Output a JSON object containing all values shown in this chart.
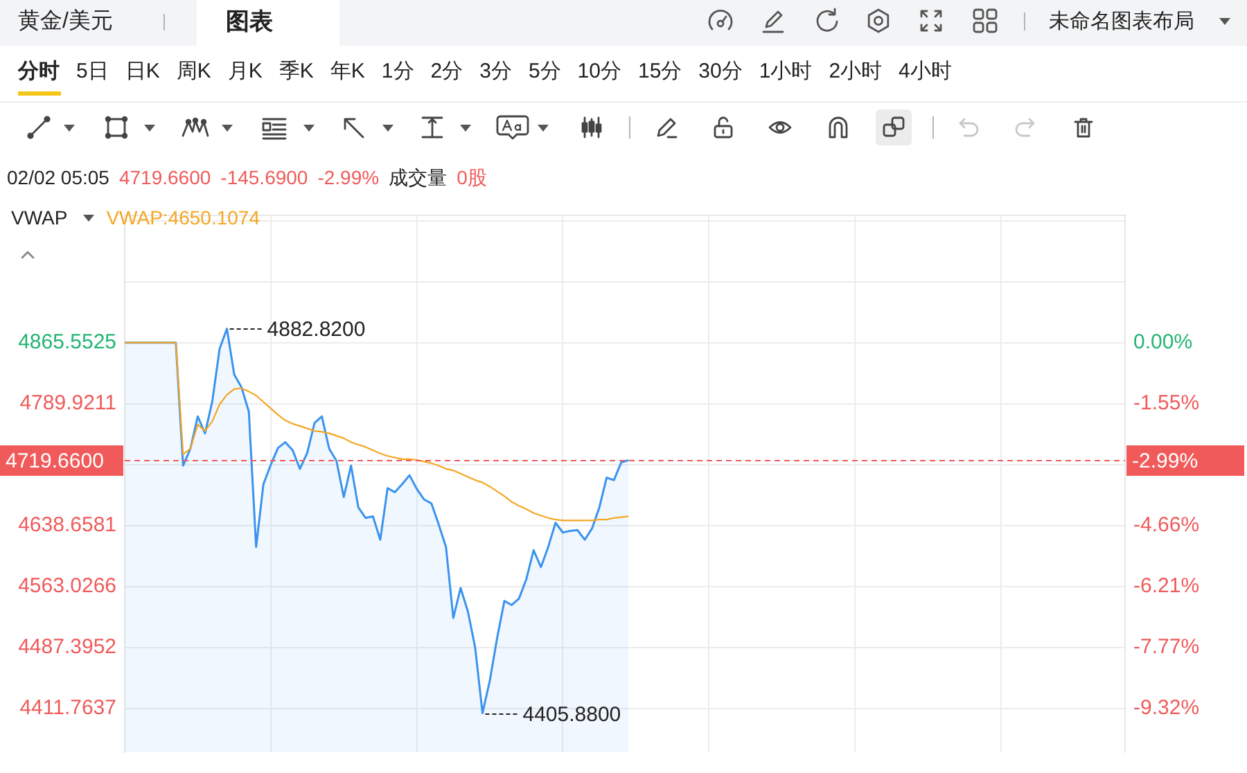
{
  "chart_data": {
    "type": "area",
    "title": "黄金/美元",
    "categories": [
      null,
      null,
      null,
      null,
      null,
      null,
      null,
      null,
      null,
      null,
      null,
      null,
      null,
      null,
      null,
      null,
      null,
      null,
      null,
      null,
      null,
      null,
      null,
      null,
      null,
      null,
      null,
      null,
      null,
      null,
      null,
      null,
      null,
      null,
      null,
      null,
      null,
      null,
      null,
      null,
      null,
      null,
      null,
      null,
      null,
      null,
      null,
      null,
      null,
      null,
      null,
      null,
      null,
      null,
      null,
      null,
      null,
      null,
      null,
      null,
      null,
      null,
      null,
      null,
      null,
      null,
      null,
      null,
      null,
      null,
      null,
      null,
      null,
      null,
      null,
      null,
      null,
      null,
      null,
      null,
      null,
      null,
      null,
      null,
      null,
      null,
      null,
      null,
      null,
      null,
      null,
      null,
      null,
      null,
      null,
      null,
      null,
      null,
      null,
      null,
      null,
      null,
      null,
      null,
      null,
      null,
      null,
      null,
      null,
      null,
      null,
      null,
      null,
      null,
      null,
      null,
      null,
      null,
      null,
      null,
      null,
      null,
      null,
      null,
      null,
      null,
      null,
      null,
      null,
      null,
      null,
      null,
      null,
      null,
      null,
      null,
      null,
      null
    ],
    "series": [
      {
        "color": "#3a93ef",
        "values": [
          4865.6,
          4865.6,
          4865.6,
          4865.6,
          4865.6,
          4865.6,
          4865.6,
          4865.6,
          4713,
          4734,
          4774,
          4753,
          4793,
          4858,
          4882.82,
          4826,
          4810,
          4780,
          4612,
          4690,
          4714,
          4735,
          4742,
          4732,
          4709,
          4729,
          4766,
          4774,
          4734,
          4719,
          4674,
          4713,
          4661,
          4648,
          4650,
          4621,
          4685,
          4680,
          4690,
          4701,
          4684,
          4671,
          4666,
          4640,
          4612,
          4524,
          4561,
          4532,
          4487,
          4405.88,
          4446,
          4499,
          4545,
          4540,
          4548,
          4572,
          4608,
          4587,
          4612,
          4642,
          4630,
          4632,
          4633,
          4621,
          4635,
          4661,
          4698,
          4695,
          4717,
          4719.66,
          null,
          null,
          null,
          null,
          null,
          null,
          null,
          null,
          null,
          null,
          null,
          null,
          null,
          null,
          null,
          null,
          null,
          null,
          null,
          null,
          null,
          null,
          null,
          null,
          null,
          null,
          null,
          null,
          null,
          null,
          null,
          null,
          null,
          null,
          null,
          null,
          null,
          null,
          null,
          null,
          null,
          null,
          null,
          null,
          null,
          null,
          null,
          null,
          null,
          null,
          null,
          null,
          null,
          null,
          null,
          null,
          null,
          null,
          null,
          null,
          null,
          null,
          null,
          null,
          null,
          null,
          null,
          null
        ]
      },
      {
        "type": "line",
        "name": "VWAP:4650.1074",
        "color": "#f5a623",
        "values": [
          4865.6,
          4865.6,
          4865.6,
          4865.6,
          4865.6,
          4865.6,
          4865.6,
          4865.6,
          4727,
          4734,
          4764,
          4756,
          4768,
          4789,
          4801,
          4808,
          4809,
          4805,
          4800,
          4792,
          4784,
          4776,
          4769,
          4765,
          4762,
          4759,
          4756,
          4755,
          4753,
          4750,
          4747,
          4742,
          4739,
          4736,
          4732,
          4728,
          4725,
          4723,
          4721,
          4721,
          4720,
          4718,
          4716,
          4713,
          4709,
          4707,
          4703,
          4699,
          4695,
          4692,
          4687,
          4681,
          4675,
          4668,
          4663,
          4659,
          4654,
          4651,
          4648,
          4646,
          4645,
          4645,
          4645,
          4645,
          4645,
          4646,
          4646,
          4648,
          4649,
          4650.1074,
          null,
          null,
          null,
          null,
          null,
          null,
          null,
          null,
          null,
          null,
          null,
          null,
          null,
          null,
          null,
          null,
          null,
          null,
          null,
          null,
          null,
          null,
          null,
          null,
          null,
          null,
          null,
          null,
          null,
          null,
          null,
          null,
          null,
          null,
          null,
          null,
          null,
          null,
          null,
          null,
          null,
          null,
          null,
          null,
          null,
          null,
          null,
          null,
          null,
          null,
          null,
          null,
          null,
          null,
          null,
          null,
          null,
          null,
          null,
          null,
          null,
          null,
          null,
          null,
          null,
          null,
          null,
          null
        ]
      }
    ],
    "ylim": [
      4357.3,
      5024.3
    ],
    "yticks": [
      {
        "value": 5016.8154,
        "label": null
      },
      {
        "value": 4941.1839,
        "label": null
      },
      4865.5525,
      4789.9211,
      {
        "value": 4714.2896,
        "label": null
      },
      4638.6581,
      4563.0266,
      4487.3952,
      4411.7637
    ],
    "y2lim": [
      -10.446,
      3.263
    ],
    "y2ticks": [
      {
        "value": 0,
        "label": "0.00%"
      },
      {
        "value": -1.55,
        "label": "-1.55%"
      },
      {
        "value": -4.66,
        "label": "-4.66%"
      },
      {
        "value": -6.21,
        "label": "-6.21%"
      },
      {
        "value": -7.77,
        "label": "-7.77%"
      },
      {
        "value": -9.32,
        "label": "-9.32%"
      }
    ],
    "grid": true,
    "legend": "top left",
    "legend_title": "VWAP",
    "ref_lines": [
      {
        "axis": "y",
        "value": 4719.66,
        "label": "4719.6600",
        "color": "#f05a5a",
        "line_style": "dashed"
      }
    ],
    "annotations": [
      "图表",
      "未命名图表布局",
      "分时",
      "5日",
      "日K",
      "周K",
      "月K",
      "季K",
      "年K",
      "1分",
      "2分",
      "3分",
      "5分",
      "10分",
      "15分",
      "30分",
      "1小时",
      "2小时",
      "4小时",
      "02/02 05:05",
      "4719.6600",
      "-145.6900",
      "-2.99%",
      "成交量",
      "0股",
      "4882.8200",
      "4405.8800",
      "-2.99%"
    ]
  }
}
